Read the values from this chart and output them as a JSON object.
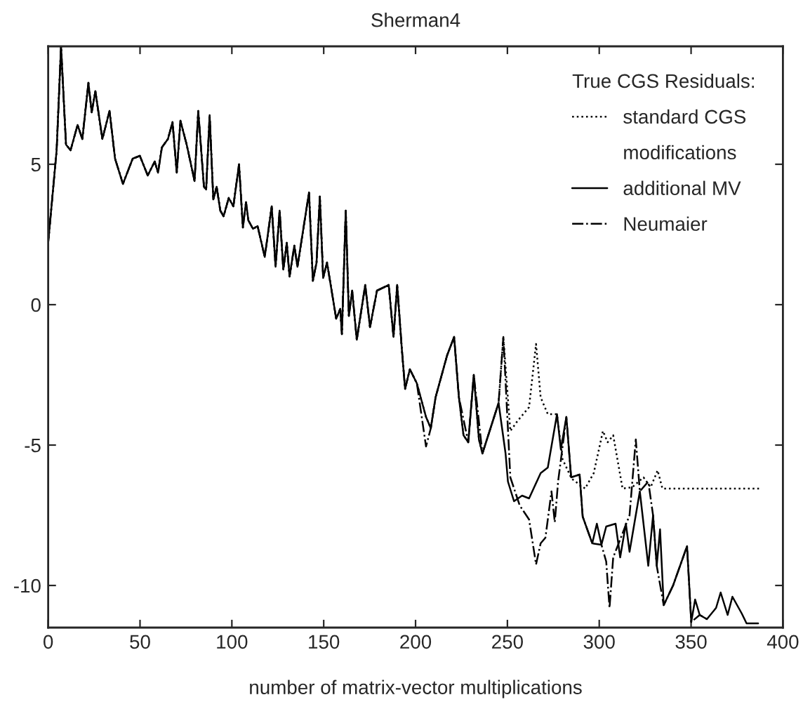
{
  "chart_data": {
    "type": "line",
    "title": "Sherman4",
    "xlabel": "number of matrix-vector multiplications",
    "legend_title": "True CGS Residuals:",
    "annotations": [
      "modifications"
    ],
    "xlim": [
      0,
      400
    ],
    "ylim": [
      -11.5,
      9.2
    ],
    "xticks": [
      0,
      50,
      100,
      150,
      200,
      250,
      300,
      350,
      400
    ],
    "yticks": [
      -10,
      -5,
      0,
      5
    ],
    "grid": false,
    "legend": "top right",
    "marker": "none",
    "series": [
      {
        "name": "standard CGS",
        "color": "#000000",
        "line_style": "dotted",
        "x": [
          0,
          4.6,
          7,
          9.7,
          12.2,
          16,
          18.6,
          21.9,
          23.7,
          25.7,
          29.5,
          33.4,
          36.4,
          40.7,
          46,
          49.9,
          54.2,
          58,
          59.8,
          61.9,
          65.2,
          67.7,
          70,
          72,
          75.4,
          79.7,
          81.7,
          84.8,
          86,
          87.9,
          89.9,
          91.7,
          93.7,
          95.5,
          98.3,
          100.8,
          103.9,
          106,
          107.7,
          109,
          111.5,
          114,
          117.9,
          121.7,
          123.8,
          126,
          128,
          129.9,
          131.4,
          134,
          135.7,
          142,
          144.1,
          146.1,
          147.9,
          149.7,
          151.8,
          156.8,
          159,
          159.9,
          162,
          163.7,
          165.5,
          168,
          172.6,
          175.2,
          179,
          185.4,
          188,
          190,
          192.5,
          194.3,
          196.9,
          200.7,
          205.7,
          208.3,
          210.9,
          217.2,
          221,
          223.6,
          226.1,
          228.7,
          231.7,
          234.5,
          236.4,
          245.2,
          247.8,
          251.6,
          255.4,
          261.8,
          265.6,
          268.1,
          272,
          277,
          280,
          285,
          292.3,
          297,
          302,
          304.6,
          307.6,
          312.7,
          318,
          324.1,
          328,
          331.8,
          334.4,
          387.8
        ],
        "values": [
          2.2,
          5.5,
          9.2,
          5.7,
          5.5,
          6.4,
          5.9,
          7.9,
          6.85,
          7.6,
          5.9,
          6.9,
          5.2,
          4.3,
          5.2,
          5.3,
          4.6,
          5.1,
          4.7,
          5.6,
          5.9,
          6.5,
          4.7,
          6.55,
          5.7,
          4.4,
          6.9,
          4.2,
          4.1,
          6.75,
          3.75,
          4.2,
          3.35,
          3.15,
          3.8,
          3.5,
          5.0,
          2.75,
          3.65,
          3.0,
          2.7,
          2.8,
          1.7,
          3.5,
          1.35,
          3.35,
          1.25,
          2.2,
          1.0,
          2.1,
          1.35,
          4.0,
          0.85,
          1.5,
          3.85,
          0.95,
          1.5,
          -0.5,
          -0.15,
          -1.05,
          3.35,
          -0.4,
          0.5,
          -1.25,
          0.7,
          -0.8,
          0.5,
          0.7,
          -1.15,
          0.7,
          -1.55,
          -3.0,
          -2.3,
          -2.8,
          -4.0,
          -4.4,
          -3.3,
          -1.8,
          -1.15,
          -3.3,
          -4.65,
          -4.9,
          -2.5,
          -4.8,
          -5.3,
          -3.5,
          -1.15,
          -4.5,
          -4.15,
          -3.65,
          -1.4,
          -3.3,
          -3.9,
          -3.9,
          -5.5,
          -6.2,
          -6.55,
          -6.0,
          -4.5,
          -4.9,
          -4.65,
          -6.55,
          -6.5,
          -6.15,
          -6.5,
          -5.9,
          -6.55,
          -6.55
        ]
      },
      {
        "name": "additional MV",
        "color": "#000000",
        "line_style": "solid",
        "x": [
          0,
          4.6,
          7,
          9.7,
          12.2,
          16,
          18.6,
          21.9,
          23.7,
          25.7,
          29.5,
          33.4,
          36.4,
          40.7,
          46,
          49.9,
          54.2,
          58,
          59.8,
          61.9,
          65.2,
          67.7,
          70,
          72,
          75.4,
          79.7,
          81.7,
          84.8,
          86,
          87.9,
          89.9,
          91.7,
          93.7,
          95.5,
          98.3,
          100.8,
          103.9,
          106,
          107.7,
          109,
          111.5,
          114,
          117.9,
          121.7,
          123.8,
          126,
          128,
          129.9,
          131.4,
          134,
          135.7,
          142,
          144.1,
          146.1,
          147.9,
          149.7,
          151.8,
          156.8,
          159,
          159.9,
          162,
          163.7,
          165.5,
          168,
          172.6,
          175.2,
          179,
          185.4,
          188,
          190,
          192.5,
          194.3,
          196.9,
          200.7,
          205.7,
          208.3,
          210.9,
          217.2,
          221,
          223.6,
          226.1,
          228.7,
          231.7,
          234.5,
          236.4,
          245.2,
          249,
          250.3,
          253.6,
          258,
          261.8,
          268.1,
          272,
          277,
          279.1,
          282.1,
          284.7,
          289.3,
          291,
          296.2,
          298.7,
          301.2,
          303.8,
          308.9,
          311.4,
          314.5,
          316.5,
          319.1,
          322.1,
          326.7,
          329.3,
          331.3,
          333.1,
          335.1,
          340.2,
          347.8,
          350.1,
          352.2,
          354.7,
          358.6,
          363.6,
          366.1,
          369.9,
          372.5,
          377.6,
          380.2,
          386.5
        ],
        "values": [
          2.2,
          5.5,
          9.2,
          5.7,
          5.5,
          6.4,
          5.9,
          7.9,
          6.85,
          7.6,
          5.9,
          6.9,
          5.2,
          4.3,
          5.2,
          5.3,
          4.6,
          5.1,
          4.7,
          5.6,
          5.9,
          6.5,
          4.7,
          6.55,
          5.7,
          4.4,
          6.9,
          4.2,
          4.1,
          6.75,
          3.75,
          4.2,
          3.35,
          3.15,
          3.8,
          3.5,
          5.0,
          2.75,
          3.65,
          3.0,
          2.7,
          2.8,
          1.7,
          3.5,
          1.35,
          3.35,
          1.25,
          2.2,
          1.0,
          2.1,
          1.35,
          4.0,
          0.85,
          1.5,
          3.85,
          0.95,
          1.5,
          -0.5,
          -0.15,
          -1.05,
          3.35,
          -0.4,
          0.5,
          -1.25,
          0.7,
          -0.8,
          0.5,
          0.7,
          -1.15,
          0.7,
          -1.55,
          -3.0,
          -2.3,
          -2.8,
          -4.0,
          -4.4,
          -3.3,
          -1.8,
          -1.15,
          -3.3,
          -4.65,
          -4.9,
          -2.5,
          -4.8,
          -5.3,
          -3.5,
          -5.3,
          -6.3,
          -7.0,
          -6.8,
          -6.9,
          -6.0,
          -5.8,
          -3.9,
          -5.15,
          -4.0,
          -6.15,
          -6.05,
          -7.55,
          -8.5,
          -7.8,
          -8.55,
          -7.9,
          -7.8,
          -9.0,
          -7.8,
          -8.8,
          -7.8,
          -6.65,
          -9.3,
          -7.5,
          -9.3,
          -8.0,
          -10.7,
          -10.0,
          -8.6,
          -11.3,
          -10.5,
          -11.05,
          -11.2,
          -10.8,
          -10.25,
          -11.05,
          -10.4,
          -11.0,
          -11.35,
          -11.35
        ]
      },
      {
        "name": "Neumaier",
        "color": "#000000",
        "line_style": "dashdot",
        "x": [
          0,
          4.6,
          7,
          9.7,
          12.2,
          16,
          18.6,
          21.9,
          23.7,
          25.7,
          29.5,
          33.4,
          36.4,
          40.7,
          46,
          49.9,
          54.2,
          58,
          59.8,
          61.9,
          65.2,
          67.7,
          70,
          72,
          75.4,
          79.7,
          81.7,
          84.8,
          86,
          87.9,
          89.9,
          91.7,
          93.7,
          95.5,
          98.3,
          100.8,
          103.9,
          106,
          107.7,
          109,
          111.5,
          114,
          117.9,
          121.7,
          123.8,
          126,
          128,
          129.9,
          131.4,
          134,
          135.7,
          142,
          144.1,
          146.1,
          147.9,
          149.7,
          151.8,
          156.8,
          159,
          159.9,
          162,
          163.7,
          165.5,
          168,
          172.6,
          175.2,
          179,
          185.4,
          188,
          190,
          192.5,
          194.3,
          196.9,
          200.7,
          205.7,
          208.3,
          210.9,
          217.2,
          221,
          223.6,
          228.7,
          231.7,
          236.4,
          245.2,
          247.8,
          251.6,
          256.7,
          261.8,
          265.6,
          268.1,
          270.7,
          274,
          275.8,
          277.6,
          282.1,
          284.7,
          289.3,
          291,
          296.2,
          301.2,
          303.8,
          305.6,
          307.6,
          316.5,
          319.9,
          322.1,
          326.7,
          329.3,
          331.3,
          335.1,
          340.2,
          347.8,
          350.1,
          354.7,
          358.6
        ],
        "values": [
          2.2,
          5.5,
          9.2,
          5.7,
          5.5,
          6.4,
          5.9,
          7.9,
          6.85,
          7.6,
          5.9,
          6.9,
          5.2,
          4.3,
          5.2,
          5.3,
          4.6,
          5.1,
          4.7,
          5.6,
          5.9,
          6.5,
          4.7,
          6.55,
          5.7,
          4.4,
          6.9,
          4.2,
          4.1,
          6.75,
          3.75,
          4.2,
          3.35,
          3.15,
          3.8,
          3.5,
          5.0,
          2.75,
          3.65,
          3.0,
          2.7,
          2.8,
          1.7,
          3.5,
          1.35,
          3.35,
          1.25,
          2.2,
          1.0,
          2.1,
          1.35,
          4.0,
          0.85,
          1.5,
          3.85,
          0.95,
          1.5,
          -0.5,
          -0.15,
          -1.05,
          3.35,
          -0.4,
          0.5,
          -1.25,
          0.7,
          -0.8,
          0.5,
          0.7,
          -1.15,
          0.7,
          -1.55,
          -3.0,
          -2.3,
          -2.8,
          -5.05,
          -4.4,
          -3.3,
          -1.8,
          -1.15,
          -3.3,
          -4.9,
          -2.5,
          -5.3,
          -3.5,
          -1.15,
          -6.15,
          -7.15,
          -7.65,
          -9.25,
          -8.5,
          -8.3,
          -6.65,
          -7.75,
          -6.3,
          -4.0,
          -6.15,
          -6.05,
          -7.55,
          -8.5,
          -8.55,
          -9.15,
          -10.8,
          -9.0,
          -7.5,
          -4.8,
          -6.65,
          -6.3,
          -7.5,
          -9.3,
          -10.7,
          -10.0,
          -8.6,
          -11.3,
          -11.05,
          -11.2
        ]
      }
    ]
  }
}
